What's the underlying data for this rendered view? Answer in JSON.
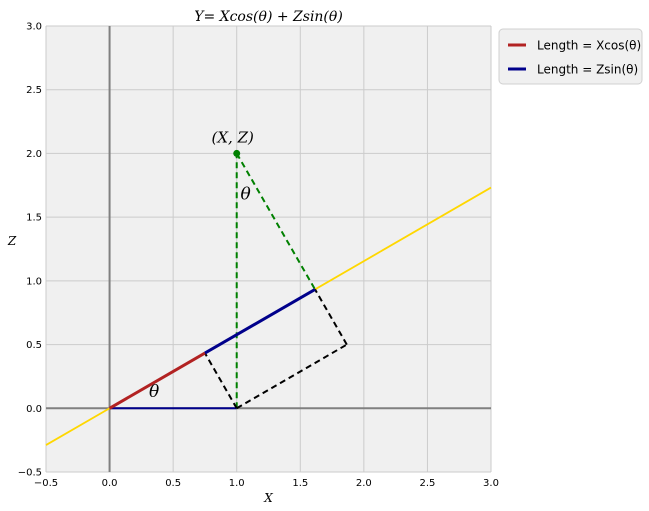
{
  "chart_data": {
    "type": "line",
    "title": "Y=  Xcos(θ) + Zsin(θ)",
    "xlabel": "X",
    "ylabel": "Z",
    "xlim": [
      -0.5,
      3.0
    ],
    "ylim": [
      -0.5,
      3.0
    ],
    "xticks": [
      "−0.5",
      "0.0",
      "0.5",
      "1.0",
      "1.5",
      "2.0",
      "2.5",
      "3.0"
    ],
    "yticks": [
      "−0.5",
      "0.0",
      "0.5",
      "1.0",
      "1.5",
      "2.0",
      "2.5",
      "3.0"
    ],
    "grid": true,
    "legend_position": "outside-top-right",
    "point": {
      "x": 1.0,
      "y": 2.0,
      "label": "(X, Z)"
    },
    "angle_labels": [
      {
        "x": 0.35,
        "y": 0.09,
        "text": "θ"
      },
      {
        "x": 1.07,
        "y": 1.64,
        "text": "θ"
      }
    ],
    "series": [
      {
        "name": "Length = Xcos(θ)",
        "color": "#b22222",
        "x": [
          0,
          0.75
        ],
        "y": [
          0,
          0.433
        ]
      },
      {
        "name": "Length = Zsin(θ)",
        "color": "#00008b",
        "x": [
          0.75,
          1.616
        ],
        "y": [
          0.433,
          0.933
        ]
      }
    ],
    "lines": [
      {
        "role": "direction-line",
        "color": "#ffd700",
        "style": "solid",
        "x": [
          -0.5,
          3.0
        ],
        "y": [
          -0.2887,
          1.7321
        ]
      },
      {
        "role": "x-segment",
        "color": "#00008b",
        "style": "solid",
        "x": [
          0,
          1
        ],
        "y": [
          0,
          0
        ]
      },
      {
        "role": "vertical-drop",
        "color": "#008000",
        "style": "dashed",
        "x": [
          1,
          1
        ],
        "y": [
          0,
          2
        ]
      },
      {
        "role": "projection-to-line",
        "color": "#008000",
        "style": "dashed",
        "x": [
          1,
          1.616
        ],
        "y": [
          2,
          0.933
        ]
      },
      {
        "role": "perpendicular-1",
        "color": "#000000",
        "style": "dashed",
        "x": [
          1,
          0.75
        ],
        "y": [
          0,
          0.433
        ]
      },
      {
        "role": "parallel-1",
        "color": "#000000",
        "style": "dashed",
        "x": [
          1,
          1.866
        ],
        "y": [
          0,
          0.5
        ]
      },
      {
        "role": "parallel-2",
        "color": "#000000",
        "style": "dashed",
        "x": [
          1.866,
          1.616
        ],
        "y": [
          0.5,
          0.933
        ]
      }
    ],
    "colors": {
      "background": "#f0f0f0",
      "grid": "#cbcbcb",
      "axis": "#808080"
    }
  }
}
